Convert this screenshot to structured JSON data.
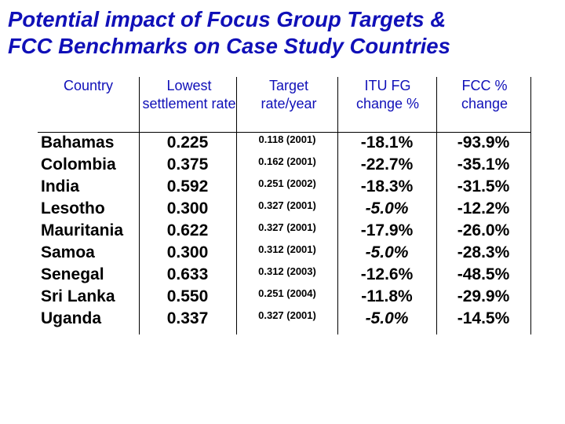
{
  "title_line1": "Potential impact of Focus Group Targets &",
  "title_line2": "FCC Benchmarks on Case Study Countries",
  "headers": {
    "country": "Country",
    "lowest": "Lowest settlement rate",
    "target": "Target rate/year",
    "itu": "ITU FG change %",
    "fcc": "FCC % change"
  },
  "rows": [
    {
      "country": "Bahamas",
      "lowest": "0.225",
      "target": "0.118 (2001)",
      "itu": "-18.1%",
      "itu_italic": false,
      "fcc": "-93.9%"
    },
    {
      "country": "Colombia",
      "lowest": "0.375",
      "target": "0.162 (2001)",
      "itu": "-22.7%",
      "itu_italic": false,
      "fcc": "-35.1%"
    },
    {
      "country": "India",
      "lowest": "0.592",
      "target": "0.251 (2002)",
      "itu": "-18.3%",
      "itu_italic": false,
      "fcc": "-31.5%"
    },
    {
      "country": "Lesotho",
      "lowest": "0.300",
      "target": "0.327 (2001)",
      "itu": "-5.0%",
      "itu_italic": true,
      "fcc": "-12.2%"
    },
    {
      "country": "Mauritania",
      "lowest": "0.622",
      "target": "0.327 (2001)",
      "itu": "-17.9%",
      "itu_italic": false,
      "fcc": "-26.0%"
    },
    {
      "country": "Samoa",
      "lowest": "0.300",
      "target": "0.312 (2001)",
      "itu": "-5.0%",
      "itu_italic": true,
      "fcc": "-28.3%"
    },
    {
      "country": "Senegal",
      "lowest": "0.633",
      "target": "0.312 (2003)",
      "itu": "-12.6%",
      "itu_italic": false,
      "fcc": "-48.5%"
    },
    {
      "country": "Sri Lanka",
      "lowest": "0.550",
      "target": "0.251 (2004)",
      "itu": "-11.8%",
      "itu_italic": false,
      "fcc": "-29.9%"
    },
    {
      "country": "Uganda",
      "lowest": "0.337",
      "target": "0.327 (2001)",
      "itu": "-5.0%",
      "itu_italic": true,
      "fcc": "-14.5%"
    }
  ],
  "colors": {
    "title": "#1010b8",
    "header": "#1010b8",
    "body_text": "#000000"
  }
}
